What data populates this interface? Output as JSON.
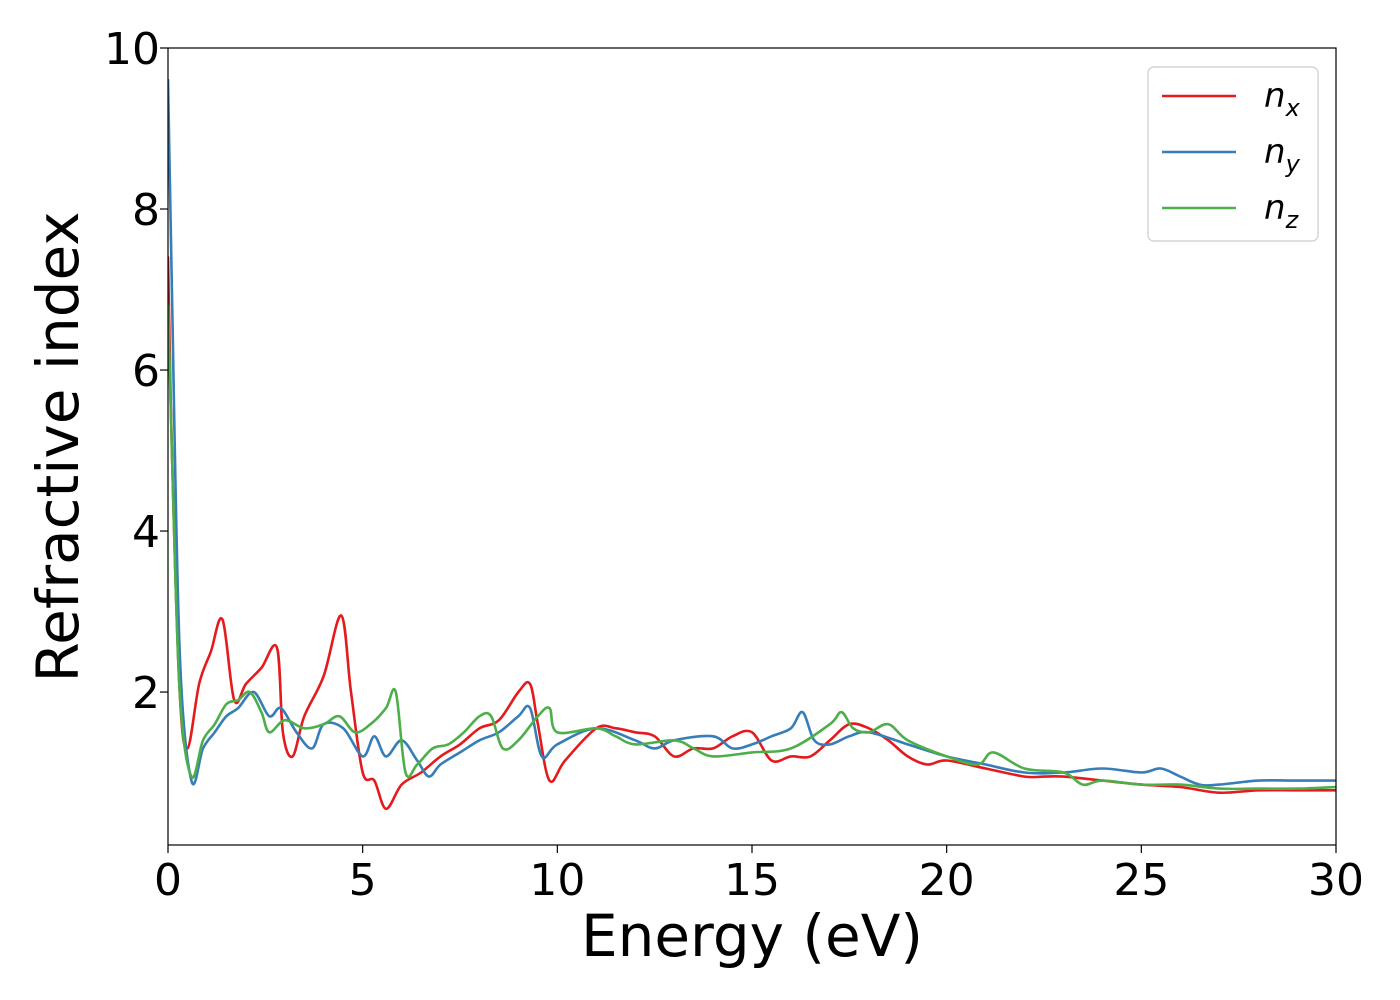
{
  "chart_data": {
    "type": "line",
    "xlabel": "Energy (eV)",
    "ylabel": "Refractive index",
    "xlim": [
      0,
      30
    ],
    "ylim": [
      0.1,
      10
    ],
    "xticks": [
      "0",
      "5",
      "10",
      "15",
      "20",
      "25",
      "30"
    ],
    "yticks": [
      "2",
      "4",
      "6",
      "8",
      "10"
    ],
    "grid": false,
    "legend_position": "top-right",
    "series": [
      {
        "name": "n_x",
        "label_main": "n",
        "label_sub": "x",
        "color": "#e41a1c",
        "x": [
          0,
          0.1,
          0.3,
          0.5,
          0.8,
          1.1,
          1.4,
          1.7,
          2.0,
          2.4,
          2.8,
          2.95,
          3.2,
          3.5,
          4.0,
          4.45,
          4.7,
          5.0,
          5.3,
          5.6,
          6.0,
          6.5,
          7.0,
          7.5,
          8.0,
          8.5,
          9.0,
          9.3,
          9.5,
          9.8,
          10.2,
          11.0,
          11.5,
          12.0,
          12.5,
          13.0,
          13.5,
          14.0,
          14.5,
          15.0,
          15.5,
          16.0,
          16.5,
          17.0,
          17.5,
          18.0,
          18.5,
          19.0,
          19.5,
          20.0,
          21.0,
          22.0,
          22.5,
          23.0,
          24.0,
          25.0,
          26.0,
          27.0,
          28.0,
          29.0,
          30.0
        ],
        "y": [
          7.4,
          5.0,
          2.0,
          1.3,
          2.1,
          2.5,
          2.9,
          1.9,
          2.1,
          2.3,
          2.55,
          1.5,
          1.2,
          1.7,
          2.2,
          2.95,
          2.0,
          1.0,
          0.9,
          0.55,
          0.85,
          1.0,
          1.2,
          1.35,
          1.55,
          1.65,
          2.0,
          2.1,
          1.6,
          0.9,
          1.15,
          1.55,
          1.55,
          1.5,
          1.45,
          1.2,
          1.3,
          1.3,
          1.45,
          1.5,
          1.15,
          1.2,
          1.2,
          1.4,
          1.6,
          1.55,
          1.4,
          1.2,
          1.1,
          1.15,
          1.05,
          0.95,
          0.95,
          0.95,
          0.9,
          0.85,
          0.82,
          0.75,
          0.78,
          0.78,
          0.78
        ]
      },
      {
        "name": "n_y",
        "label_main": "n",
        "label_sub": "y",
        "color": "#377eb8",
        "x": [
          0,
          0.1,
          0.3,
          0.6,
          0.9,
          1.2,
          1.5,
          1.8,
          2.2,
          2.6,
          2.9,
          3.3,
          3.7,
          4.0,
          4.5,
          5.0,
          5.3,
          5.6,
          6.0,
          6.4,
          6.7,
          7.0,
          7.5,
          8.0,
          8.5,
          9.0,
          9.3,
          9.6,
          10.0,
          11.0,
          12.0,
          12.5,
          13.0,
          14.0,
          14.5,
          15.0,
          15.5,
          16.0,
          16.3,
          16.6,
          17.0,
          17.5,
          18.0,
          19.0,
          20.0,
          21.0,
          22.0,
          23.0,
          24.0,
          25.0,
          25.5,
          26.0,
          26.5,
          27.0,
          28.0,
          29.0,
          30.0
        ],
        "y": [
          9.6,
          7.0,
          2.5,
          0.9,
          1.3,
          1.5,
          1.7,
          1.8,
          2.0,
          1.7,
          1.8,
          1.5,
          1.3,
          1.6,
          1.55,
          1.2,
          1.45,
          1.2,
          1.4,
          1.15,
          0.95,
          1.1,
          1.25,
          1.4,
          1.5,
          1.7,
          1.8,
          1.2,
          1.35,
          1.55,
          1.4,
          1.3,
          1.4,
          1.45,
          1.3,
          1.35,
          1.45,
          1.55,
          1.75,
          1.4,
          1.35,
          1.45,
          1.5,
          1.35,
          1.2,
          1.1,
          1.0,
          1.0,
          1.05,
          1.0,
          1.05,
          0.95,
          0.85,
          0.85,
          0.9,
          0.9,
          0.9
        ]
      },
      {
        "name": "n_z",
        "label_main": "n",
        "label_sub": "z",
        "color": "#4daf4a",
        "x": [
          0,
          0.1,
          0.3,
          0.6,
          0.9,
          1.2,
          1.5,
          1.8,
          2.1,
          2.4,
          2.6,
          3.0,
          3.5,
          4.0,
          4.4,
          4.8,
          5.2,
          5.6,
          5.85,
          6.1,
          6.4,
          6.8,
          7.2,
          7.6,
          8.0,
          8.3,
          8.6,
          9.0,
          9.5,
          9.8,
          10.0,
          11.0,
          11.5,
          12.0,
          13.0,
          13.5,
          14.0,
          15.0,
          16.0,
          17.0,
          17.3,
          17.6,
          18.0,
          18.5,
          19.0,
          20.0,
          20.8,
          21.2,
          22.0,
          23.0,
          23.5,
          24.0,
          25.0,
          26.0,
          27.0,
          28.0,
          29.0,
          30.0
        ],
        "y": [
          6.8,
          5.0,
          2.0,
          0.95,
          1.4,
          1.6,
          1.85,
          1.9,
          2.0,
          1.75,
          1.5,
          1.65,
          1.55,
          1.6,
          1.7,
          1.5,
          1.6,
          1.8,
          2.0,
          1.0,
          1.1,
          1.3,
          1.35,
          1.5,
          1.7,
          1.7,
          1.3,
          1.4,
          1.7,
          1.8,
          1.5,
          1.55,
          1.45,
          1.35,
          1.4,
          1.3,
          1.2,
          1.25,
          1.3,
          1.6,
          1.75,
          1.55,
          1.5,
          1.6,
          1.4,
          1.2,
          1.1,
          1.25,
          1.05,
          1.0,
          0.85,
          0.9,
          0.85,
          0.85,
          0.8,
          0.8,
          0.8,
          0.82
        ]
      }
    ]
  }
}
